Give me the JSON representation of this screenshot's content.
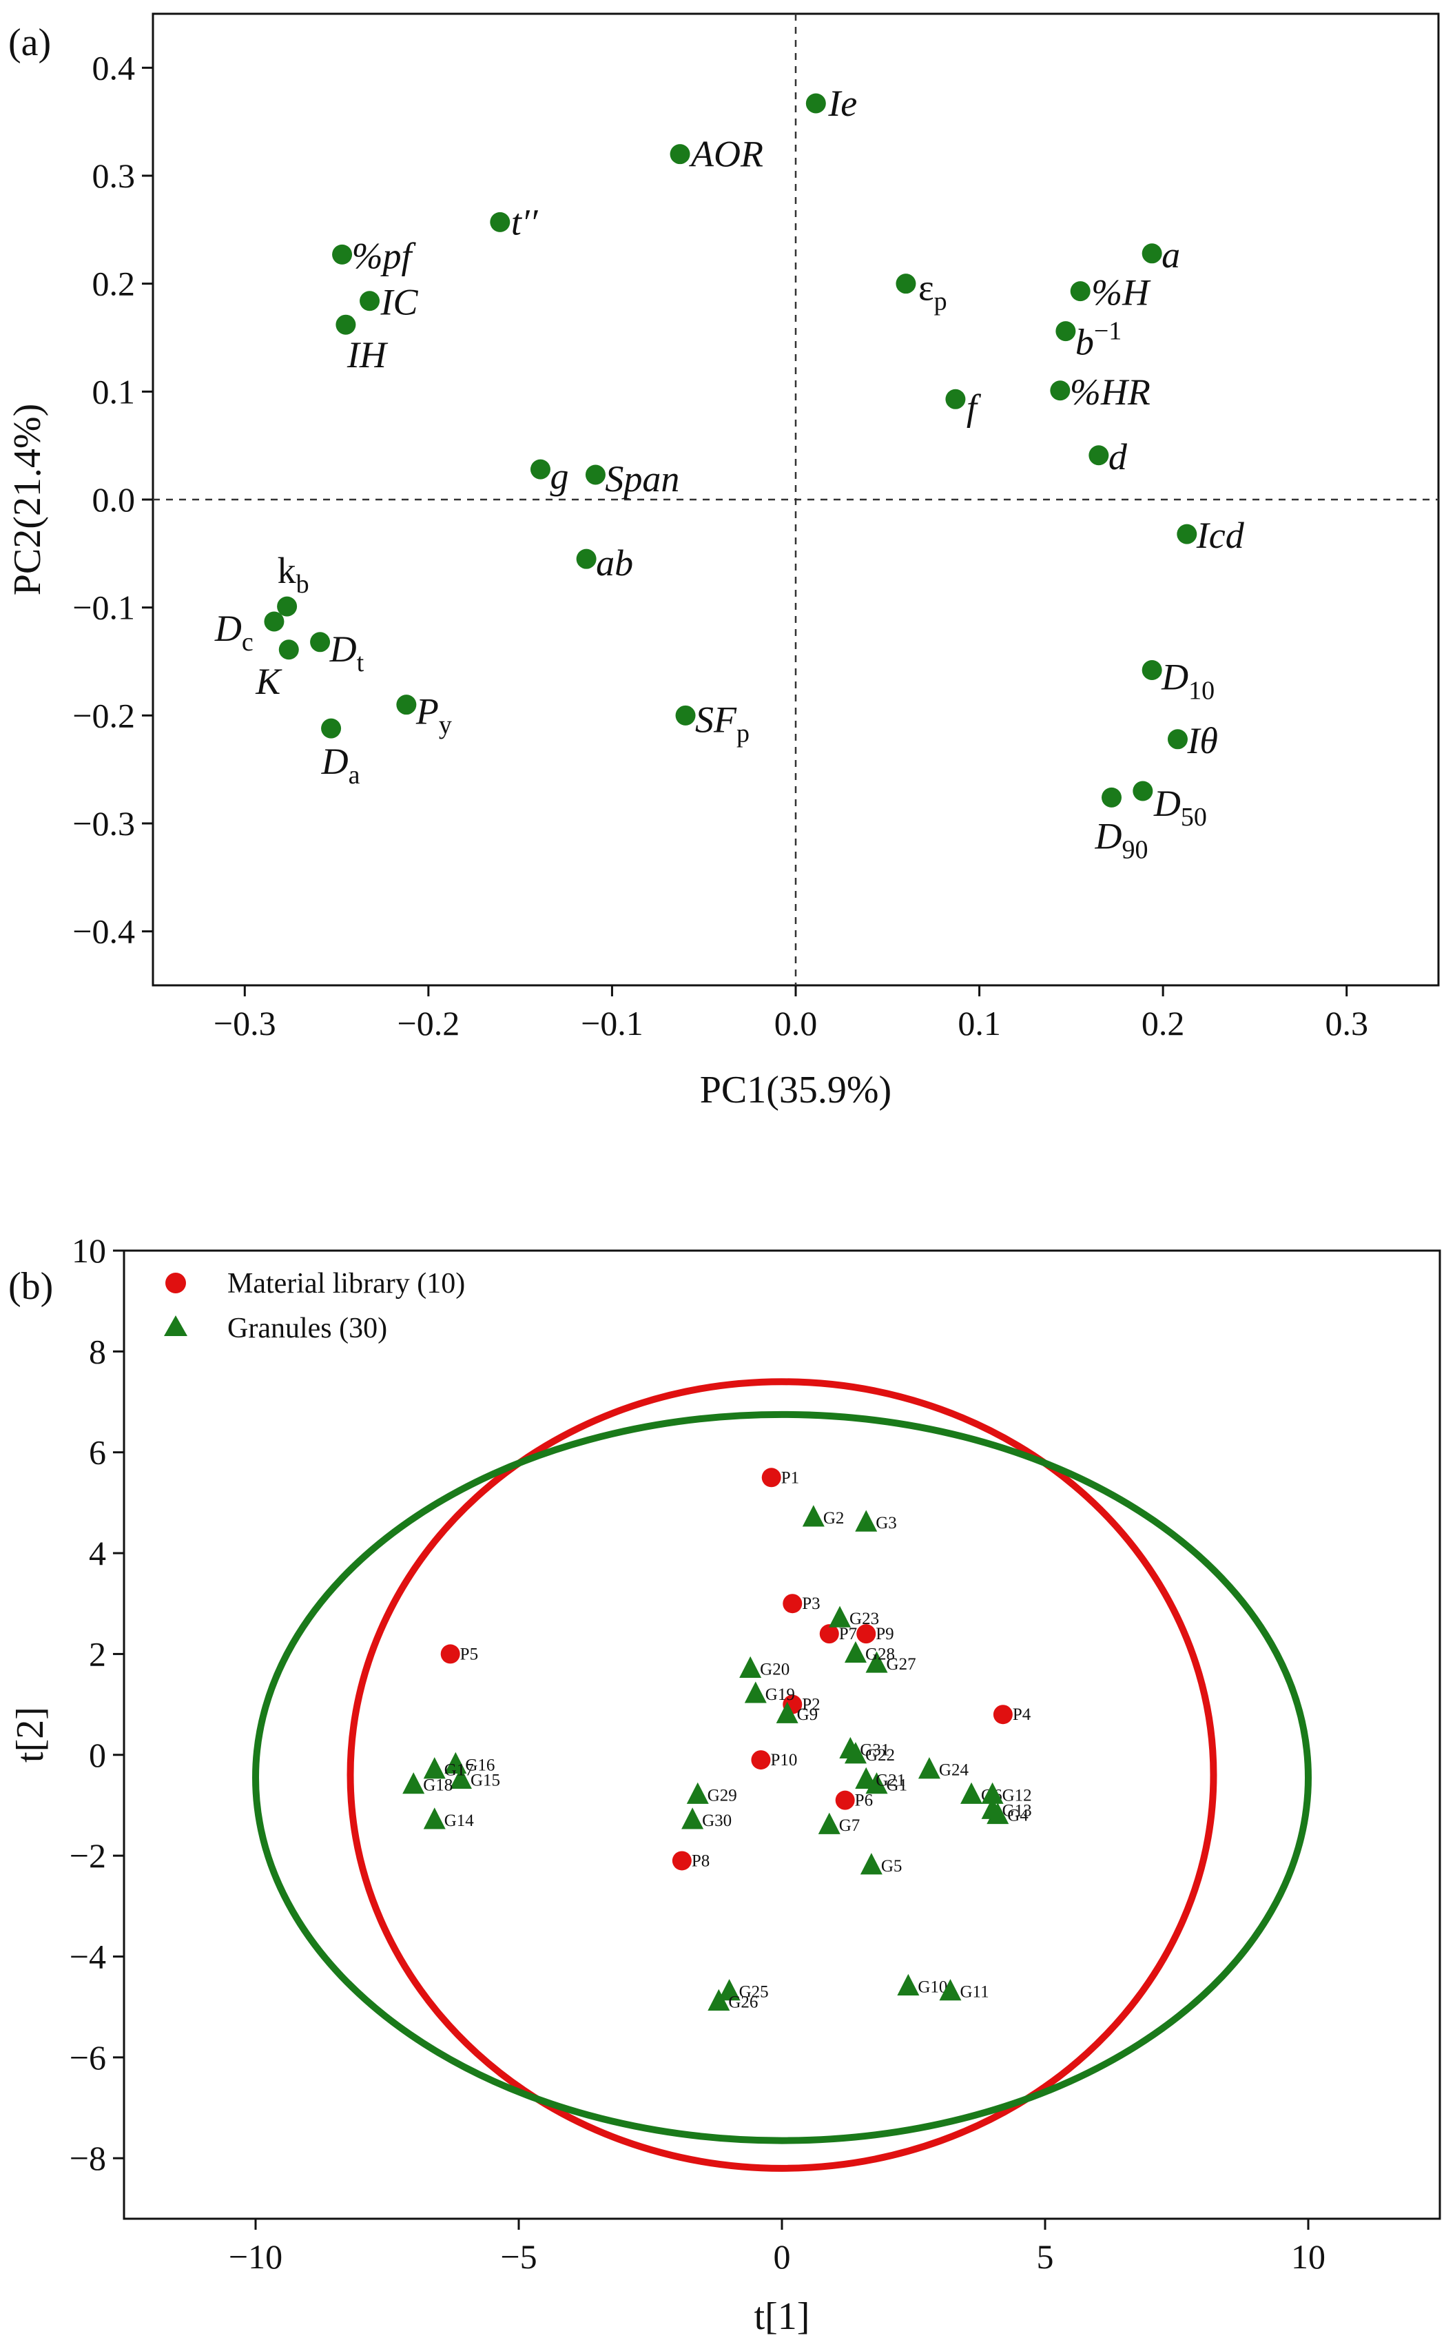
{
  "chart_data": [
    {
      "type": "scatter",
      "panel_tag": "(a)",
      "xlabel": "PC1(35.9%)",
      "ylabel": "PC2(21.4%)",
      "xlim": [
        -0.35,
        0.35
      ],
      "ylim": [
        -0.45,
        0.45
      ],
      "x_ticks": [
        "−0.3",
        "−0.2",
        "−0.1",
        "0.0",
        "0.1",
        "0.2",
        "0.3"
      ],
      "x_tick_values": [
        -0.3,
        -0.2,
        -0.1,
        0.0,
        0.1,
        0.2,
        0.3
      ],
      "y_ticks": [
        "0.4",
        "0.3",
        "0.2",
        "0.1",
        "0.0",
        "−0.1",
        "−0.2",
        "−0.3",
        "−0.4"
      ],
      "y_tick_values": [
        0.4,
        0.3,
        0.2,
        0.1,
        0.0,
        -0.1,
        -0.2,
        -0.3,
        -0.4
      ],
      "reference_lines": {
        "x": 0,
        "y": 0,
        "style": "dashed"
      },
      "marker_color": "#1a7a1a",
      "points": [
        {
          "x": 0.011,
          "y": 0.367,
          "label": "Ie",
          "main": "Ie",
          "sub": "",
          "sup": ""
        },
        {
          "x": -0.063,
          "y": 0.32,
          "label": "AOR",
          "main": "AOR",
          "sub": "",
          "sup": ""
        },
        {
          "x": -0.161,
          "y": 0.257,
          "label": "t''",
          "main": "t′′",
          "sub": "",
          "sup": ""
        },
        {
          "x": -0.247,
          "y": 0.227,
          "label": "%pf",
          "main": "%pf",
          "sub": "",
          "sup": ""
        },
        {
          "x": -0.232,
          "y": 0.184,
          "label": "IC",
          "main": "IC",
          "sub": "",
          "sup": ""
        },
        {
          "x": -0.245,
          "y": 0.162,
          "label": "IH",
          "main": "IH",
          "sub": "",
          "sup": ""
        },
        {
          "x": 0.06,
          "y": 0.2,
          "label": "εp",
          "main": "ε",
          "sub": "p",
          "sup": "",
          "upright": true
        },
        {
          "x": 0.194,
          "y": 0.228,
          "label": "a",
          "main": "a",
          "sub": "",
          "sup": ""
        },
        {
          "x": 0.155,
          "y": 0.193,
          "label": "%H",
          "main": "%H",
          "sub": "",
          "sup": ""
        },
        {
          "x": 0.147,
          "y": 0.156,
          "label": "b−1",
          "main": "b",
          "sub": "",
          "sup": "−1"
        },
        {
          "x": 0.144,
          "y": 0.101,
          "label": "%HR",
          "main": "%HR",
          "sub": "",
          "sup": ""
        },
        {
          "x": 0.087,
          "y": 0.093,
          "label": "f",
          "main": "f",
          "sub": "",
          "sup": ""
        },
        {
          "x": 0.165,
          "y": 0.041,
          "label": "d",
          "main": "d",
          "sub": "",
          "sup": ""
        },
        {
          "x": -0.139,
          "y": 0.028,
          "label": "g",
          "main": "g",
          "sub": "",
          "sup": ""
        },
        {
          "x": -0.109,
          "y": 0.023,
          "label": "Span",
          "main": "Span",
          "sub": "",
          "sup": ""
        },
        {
          "x": 0.213,
          "y": -0.032,
          "label": "Icd",
          "main": "Icd",
          "sub": "",
          "sup": ""
        },
        {
          "x": -0.114,
          "y": -0.055,
          "label": "ab",
          "main": "ab",
          "sub": "",
          "sup": ""
        },
        {
          "x": -0.277,
          "y": -0.099,
          "label": "kb",
          "main": "k",
          "sub": "b",
          "sup": "",
          "upright": true
        },
        {
          "x": -0.284,
          "y": -0.113,
          "label": "Dc",
          "main": "D",
          "sub": "c",
          "sup": ""
        },
        {
          "x": -0.259,
          "y": -0.132,
          "label": "Dt",
          "main": "D",
          "sub": "t",
          "sup": ""
        },
        {
          "x": -0.276,
          "y": -0.139,
          "label": "K",
          "main": "K",
          "sub": "",
          "sup": ""
        },
        {
          "x": -0.212,
          "y": -0.19,
          "label": "Py",
          "main": "P",
          "sub": "y",
          "sup": ""
        },
        {
          "x": -0.06,
          "y": -0.2,
          "label": "SFp",
          "main": "SF",
          "sub": "p",
          "sup": ""
        },
        {
          "x": -0.253,
          "y": -0.212,
          "label": "Da",
          "main": "D",
          "sub": "a",
          "sup": ""
        },
        {
          "x": 0.194,
          "y": -0.158,
          "label": "D10",
          "main": "D",
          "sub": "10",
          "sup": ""
        },
        {
          "x": 0.208,
          "y": -0.222,
          "label": "Iθ",
          "main": "Iθ",
          "sub": "",
          "sup": ""
        },
        {
          "x": 0.189,
          "y": -0.27,
          "label": "D50",
          "main": "D",
          "sub": "50",
          "sup": ""
        },
        {
          "x": 0.172,
          "y": -0.276,
          "label": "D90",
          "main": "D",
          "sub": "90",
          "sup": ""
        }
      ]
    },
    {
      "type": "scatter",
      "panel_tag": "(b)",
      "xlabel": "t[1]",
      "ylabel": "t[2]",
      "xlim": [
        -12.5,
        12.5
      ],
      "ylim": [
        -9.2,
        10
      ],
      "x_ticks": [
        "−10",
        "−5",
        "0",
        "5",
        "10"
      ],
      "x_tick_values": [
        -10,
        -5,
        0,
        5,
        10
      ],
      "y_ticks": [
        "10",
        "8",
        "6",
        "4",
        "2",
        "0",
        "−2",
        "−4",
        "−6",
        "−8"
      ],
      "y_tick_values": [
        10,
        8,
        6,
        4,
        2,
        0,
        -2,
        -4,
        -6,
        -8
      ],
      "legend": {
        "position": "top-left",
        "entries": [
          {
            "name": "Material library (10)",
            "marker": "circle",
            "color": "#e01010"
          },
          {
            "name": "Granules (30)",
            "marker": "triangle",
            "color": "#1a7a1a"
          }
        ]
      },
      "ellipses": [
        {
          "series": "Material library (10)",
          "cx": 0,
          "cy": -0.4,
          "rx": 8.2,
          "ry": 7.8,
          "color": "#e01010"
        },
        {
          "series": "Granules (30)",
          "cx": 0,
          "cy": -0.45,
          "rx": 10.0,
          "ry": 7.2,
          "color": "#1a7a1a"
        }
      ],
      "series": [
        {
          "name": "Material library (10)",
          "marker": "circle",
          "color": "#e01010",
          "points": [
            {
              "x": -0.2,
              "y": 5.5,
              "label": "P1"
            },
            {
              "x": 0.2,
              "y": 1.0,
              "label": "P2"
            },
            {
              "x": 0.2,
              "y": 3.0,
              "label": "P3"
            },
            {
              "x": 4.2,
              "y": 0.8,
              "label": "P4"
            },
            {
              "x": -6.3,
              "y": 2.0,
              "label": "P5"
            },
            {
              "x": 1.2,
              "y": -0.9,
              "label": "P6"
            },
            {
              "x": 0.9,
              "y": 2.4,
              "label": "P7"
            },
            {
              "x": 1.6,
              "y": 2.4,
              "label": "P9"
            },
            {
              "x": -0.4,
              "y": -0.1,
              "label": "P10"
            },
            {
              "x": -1.9,
              "y": -2.1,
              "label": "P8"
            }
          ]
        },
        {
          "name": "Granules (30)",
          "marker": "triangle",
          "color": "#1a7a1a",
          "points": [
            {
              "x": 1.8,
              "y": -0.6,
              "label": "G1"
            },
            {
              "x": 0.6,
              "y": 4.7,
              "label": "G2"
            },
            {
              "x": 1.6,
              "y": 4.6,
              "label": "G3"
            },
            {
              "x": 4.1,
              "y": -1.2,
              "label": "G4"
            },
            {
              "x": 1.7,
              "y": -2.2,
              "label": "G5"
            },
            {
              "x": 3.6,
              "y": -0.8,
              "label": "G6"
            },
            {
              "x": 0.9,
              "y": -1.4,
              "label": "G7"
            },
            {
              "x": 0.1,
              "y": 0.8,
              "label": "G9"
            },
            {
              "x": 2.4,
              "y": -4.6,
              "label": "G10"
            },
            {
              "x": 3.2,
              "y": -4.7,
              "label": "G11"
            },
            {
              "x": 4.0,
              "y": -0.8,
              "label": "G12"
            },
            {
              "x": 4.0,
              "y": -1.1,
              "label": "G13"
            },
            {
              "x": -6.6,
              "y": -1.3,
              "label": "G14"
            },
            {
              "x": -6.1,
              "y": -0.5,
              "label": "G15"
            },
            {
              "x": -6.2,
              "y": -0.2,
              "label": "G16"
            },
            {
              "x": -6.6,
              "y": -0.3,
              "label": "G17"
            },
            {
              "x": -7.0,
              "y": -0.6,
              "label": "G18"
            },
            {
              "x": -0.5,
              "y": 1.2,
              "label": "G19"
            },
            {
              "x": -0.6,
              "y": 1.7,
              "label": "G20"
            },
            {
              "x": 1.6,
              "y": -0.5,
              "label": "G21"
            },
            {
              "x": 1.4,
              "y": 0.0,
              "label": "G22"
            },
            {
              "x": 1.1,
              "y": 2.7,
              "label": "G23"
            },
            {
              "x": 2.8,
              "y": -0.3,
              "label": "G24"
            },
            {
              "x": -1.0,
              "y": -4.7,
              "label": "G25"
            },
            {
              "x": -1.2,
              "y": -4.9,
              "label": "G26"
            },
            {
              "x": 1.8,
              "y": 1.8,
              "label": "G27"
            },
            {
              "x": 1.4,
              "y": 2.0,
              "label": "G28"
            },
            {
              "x": -1.6,
              "y": -0.8,
              "label": "G29"
            },
            {
              "x": -1.7,
              "y": -1.3,
              "label": "G30"
            },
            {
              "x": 1.3,
              "y": 0.1,
              "label": "G31"
            }
          ]
        }
      ]
    }
  ]
}
